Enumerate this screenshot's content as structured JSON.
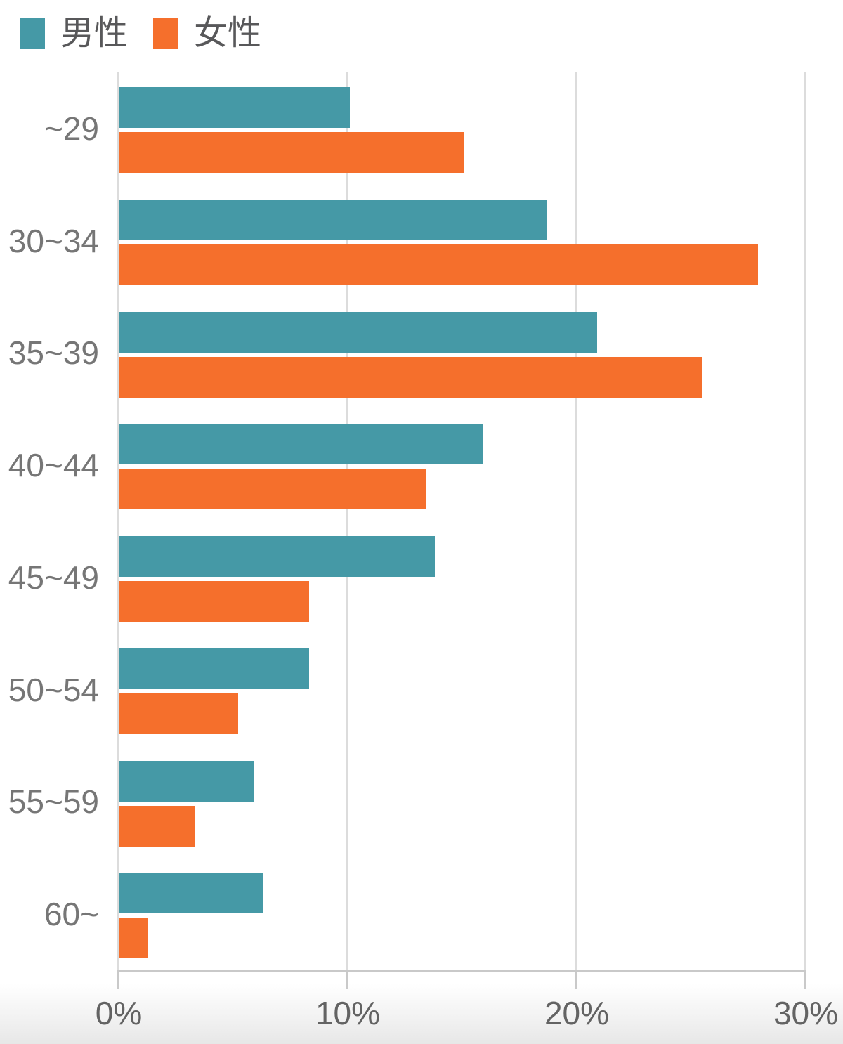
{
  "legend": {
    "items": [
      {
        "label": "男性",
        "key": "male"
      },
      {
        "label": "女性",
        "key": "female"
      }
    ]
  },
  "chart_data": {
    "type": "bar",
    "orientation": "horizontal",
    "title": "",
    "xlabel": "",
    "ylabel": "",
    "categories": [
      "~29",
      "30~34",
      "35~39",
      "40~44",
      "45~49",
      "50~54",
      "55~59",
      "60~"
    ],
    "series": [
      {
        "name": "男性",
        "key": "male",
        "color": "#4599A6",
        "values": [
          10.1,
          18.7,
          20.9,
          15.9,
          13.8,
          8.3,
          5.9,
          6.3
        ]
      },
      {
        "name": "女性",
        "key": "female",
        "color": "#F56F2C",
        "values": [
          15.1,
          27.9,
          25.5,
          13.4,
          8.3,
          5.2,
          3.3,
          1.3
        ]
      }
    ],
    "x_axis": {
      "min": 0,
      "max": 30,
      "tick_values": [
        0,
        10,
        20,
        30
      ],
      "tick_labels": [
        "0%",
        "10%",
        "20%",
        "30%"
      ],
      "unit": "%"
    },
    "grid": true,
    "legend_position": "top-left"
  },
  "colors": {
    "male_bar": "#4599A6",
    "female_bar": "#F56F2C",
    "gridline": "#dcdcdc",
    "axis_line": "#c9c9c9",
    "tick": "#c9c9c9",
    "x_label_text": "#636363",
    "category_label_text": "#767676",
    "legend_text": "#58585a",
    "background": "#ffffff",
    "bottom_fade": "#e7e7e7"
  }
}
